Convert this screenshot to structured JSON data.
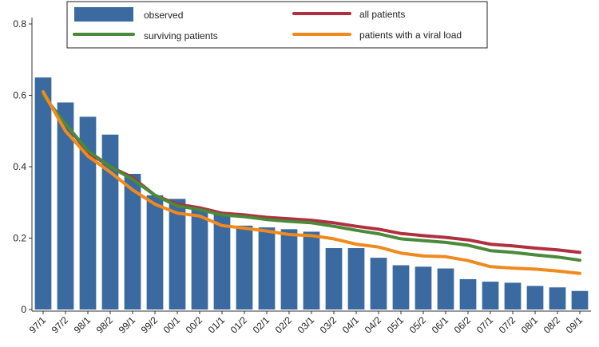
{
  "chart_data": {
    "type": "bar",
    "categories": [
      "97/1",
      "97/2",
      "98/1",
      "98/2",
      "99/1",
      "99/2",
      "00/1",
      "00/2",
      "01/1",
      "01/2",
      "02/1",
      "02/2",
      "03/1",
      "03/2",
      "04/1",
      "04/2",
      "05/1",
      "05/2",
      "06/1",
      "06/2",
      "07/1",
      "07/2",
      "08/1",
      "08/2",
      "09/1"
    ],
    "bars": {
      "name": "observed",
      "color": "#3a6aa0",
      "values": [
        0.65,
        0.58,
        0.54,
        0.49,
        0.38,
        0.32,
        0.31,
        0.28,
        0.27,
        0.235,
        0.23,
        0.225,
        0.218,
        0.172,
        0.172,
        0.145,
        0.124,
        0.12,
        0.115,
        0.085,
        0.078,
        0.075,
        0.066,
        0.062,
        0.052
      ]
    },
    "series": [
      {
        "name": "all patients",
        "color": "#b03040",
        "values": [
          0.6,
          0.52,
          0.44,
          0.4,
          0.37,
          0.32,
          0.295,
          0.285,
          0.27,
          0.265,
          0.258,
          0.254,
          0.25,
          0.243,
          0.233,
          0.225,
          0.213,
          0.207,
          0.202,
          0.195,
          0.183,
          0.178,
          0.172,
          0.167,
          0.16
        ]
      },
      {
        "name": "surviving patients",
        "color": "#4a8a3a",
        "values": [
          0.6,
          0.52,
          0.445,
          0.4,
          0.365,
          0.32,
          0.29,
          0.28,
          0.265,
          0.26,
          0.252,
          0.247,
          0.243,
          0.233,
          0.222,
          0.212,
          0.198,
          0.193,
          0.188,
          0.18,
          0.165,
          0.16,
          0.153,
          0.147,
          0.138
        ]
      },
      {
        "name": "patients with a viral load",
        "color": "#f08a1e",
        "values": [
          0.61,
          0.5,
          0.43,
          0.385,
          0.335,
          0.295,
          0.27,
          0.262,
          0.235,
          0.228,
          0.22,
          0.21,
          0.207,
          0.198,
          0.183,
          0.175,
          0.158,
          0.15,
          0.148,
          0.137,
          0.12,
          0.116,
          0.113,
          0.108,
          0.101
        ]
      }
    ],
    "y_ticks": [
      "0",
      "0.2",
      "0.4",
      "0.6",
      "0.8"
    ],
    "ylim": [
      0,
      0.8
    ],
    "legend_position": "top"
  }
}
